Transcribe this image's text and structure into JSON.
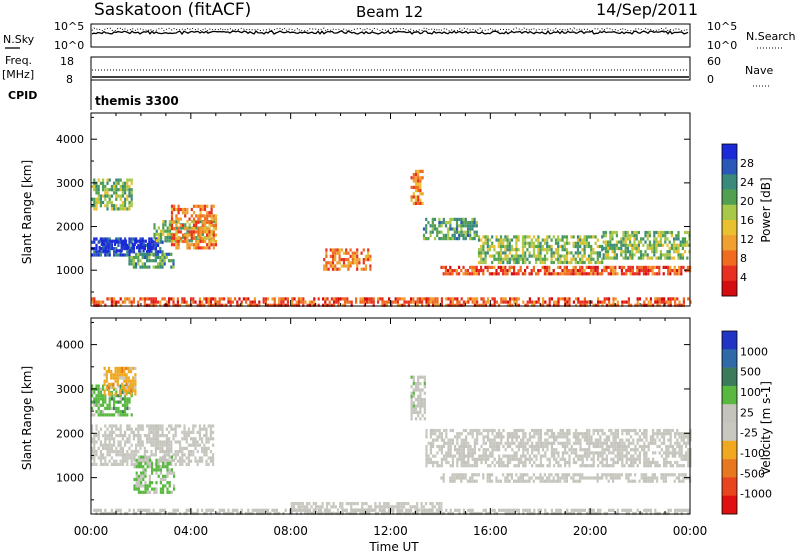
{
  "header": {
    "station": "Saskatoon (fitACF)",
    "beam": "Beam 12",
    "date": "14/Sep/2011"
  },
  "top_panels": {
    "nsky_label": "N.Sky",
    "nsky_ticks": [
      "10^5",
      "10^0"
    ],
    "nsearch_label": "N.Search",
    "nsearch_ticks": [
      "10^5",
      "10^0"
    ],
    "freq_label": "Freq.",
    "freq_unit": "[MHz]",
    "freq_ticks": [
      "18",
      "8"
    ],
    "nave_label": "Nave",
    "nave_ticks": [
      "60",
      "0"
    ],
    "cpid_label": "CPID",
    "cpid_value": "themis 3300"
  },
  "colors": {
    "power_scale": [
      "#1a2ad6",
      "#2a58b8",
      "#3a8a7c",
      "#50a050",
      "#a8c84a",
      "#e8c030",
      "#f0a030",
      "#f06a20",
      "#e83020",
      "#d40e10"
    ],
    "velocity_scale": [
      "#2035c4",
      "#2e6aa8",
      "#3c7a5c",
      "#58b840",
      "#c4c4bc",
      "#c8c8c0",
      "#f0a820",
      "#e87820",
      "#e84420",
      "#e01010"
    ]
  },
  "chart_data": [
    {
      "type": "heatmap",
      "name": "power",
      "ylabel": "Slant Range [km]",
      "ylim": [
        180,
        4600
      ],
      "yticks": [
        "4000",
        "3000",
        "2000",
        "1000"
      ],
      "yticks_values": [
        4000,
        3000,
        2000,
        1000
      ],
      "xlim_hours": [
        0,
        24
      ],
      "xticks": [
        "00:00",
        "04:00",
        "08:00",
        "12:00",
        "16:00",
        "20:00",
        "00:00"
      ],
      "colorbar": {
        "label": "Power [dB]",
        "ticks": [
          "28",
          "24",
          "20",
          "16",
          "12",
          "8",
          "4"
        ],
        "range": [
          0,
          30
        ]
      },
      "regions": [
        {
          "t": [
            0,
            2.9
          ],
          "r": [
            1350,
            1750
          ],
          "v": 27
        },
        {
          "t": [
            0.3,
            2.5
          ],
          "r": [
            1450,
            1700
          ],
          "v": 30
        },
        {
          "t": [
            2.5,
            4.9
          ],
          "r": [
            1650,
            2150
          ],
          "v": 18
        },
        {
          "t": [
            0,
            1.6
          ],
          "r": [
            2400,
            3100
          ],
          "v": 18
        },
        {
          "t": [
            1.5,
            3.3
          ],
          "r": [
            1050,
            1400
          ],
          "v": 20
        },
        {
          "t": [
            3.2,
            5.0
          ],
          "r": [
            1500,
            2500
          ],
          "v": 8
        },
        {
          "t": [
            9.3,
            11.2
          ],
          "r": [
            1050,
            1500
          ],
          "v": 8
        },
        {
          "t": [
            12.8,
            13.3
          ],
          "r": [
            2500,
            3300
          ],
          "v": 9
        },
        {
          "t": [
            13.3,
            15.5
          ],
          "r": [
            1750,
            2200
          ],
          "v": 20
        },
        {
          "t": [
            15.5,
            20.5
          ],
          "r": [
            1200,
            1800
          ],
          "v": 18
        },
        {
          "t": [
            20.5,
            24
          ],
          "r": [
            1250,
            1900
          ],
          "v": 18
        },
        {
          "t": [
            14,
            24
          ],
          "r": [
            900,
            1100
          ],
          "v": 6
        },
        {
          "t": [
            0,
            24
          ],
          "r": [
            200,
            380
          ],
          "v": 6
        }
      ]
    },
    {
      "type": "heatmap",
      "name": "velocity",
      "ylabel": "Slant Range [km]",
      "ylim": [
        180,
        4600
      ],
      "yticks": [
        "4000",
        "3000",
        "2000",
        "1000"
      ],
      "yticks_values": [
        4000,
        3000,
        2000,
        1000
      ],
      "xlim_hours": [
        0,
        24
      ],
      "xticks": [
        "00:00",
        "04:00",
        "08:00",
        "12:00",
        "16:00",
        "20:00",
        "00:00"
      ],
      "xlabel": "Time UT",
      "colorbar": {
        "label": "Velocity [m s-1]",
        "ticks": [
          "1000",
          "500",
          "100",
          "25",
          "-25",
          "-100",
          "-500",
          "-1000"
        ],
        "range": [
          -1000,
          1000
        ]
      },
      "regions": [
        {
          "t": [
            0,
            4.9
          ],
          "r": [
            1300,
            2200
          ],
          "v": 0
        },
        {
          "t": [
            0,
            1.6
          ],
          "r": [
            2400,
            3100
          ],
          "v": 300
        },
        {
          "t": [
            0.5,
            1.8
          ],
          "r": [
            2900,
            3500
          ],
          "v": -300
        },
        {
          "t": [
            1.7,
            3.3
          ],
          "r": [
            700,
            1500
          ],
          "v": 200
        },
        {
          "t": [
            12.8,
            13.4
          ],
          "r": [
            2300,
            3300
          ],
          "v": 150
        },
        {
          "t": [
            13.4,
            24
          ],
          "r": [
            1250,
            2100
          ],
          "v": 0
        },
        {
          "t": [
            14,
            24
          ],
          "r": [
            900,
            1100
          ],
          "v": 0
        },
        {
          "t": [
            8,
            14
          ],
          "r": [
            200,
            450
          ],
          "v": -120
        },
        {
          "t": [
            0,
            24
          ],
          "r": [
            200,
            300
          ],
          "v": 60
        }
      ]
    }
  ]
}
